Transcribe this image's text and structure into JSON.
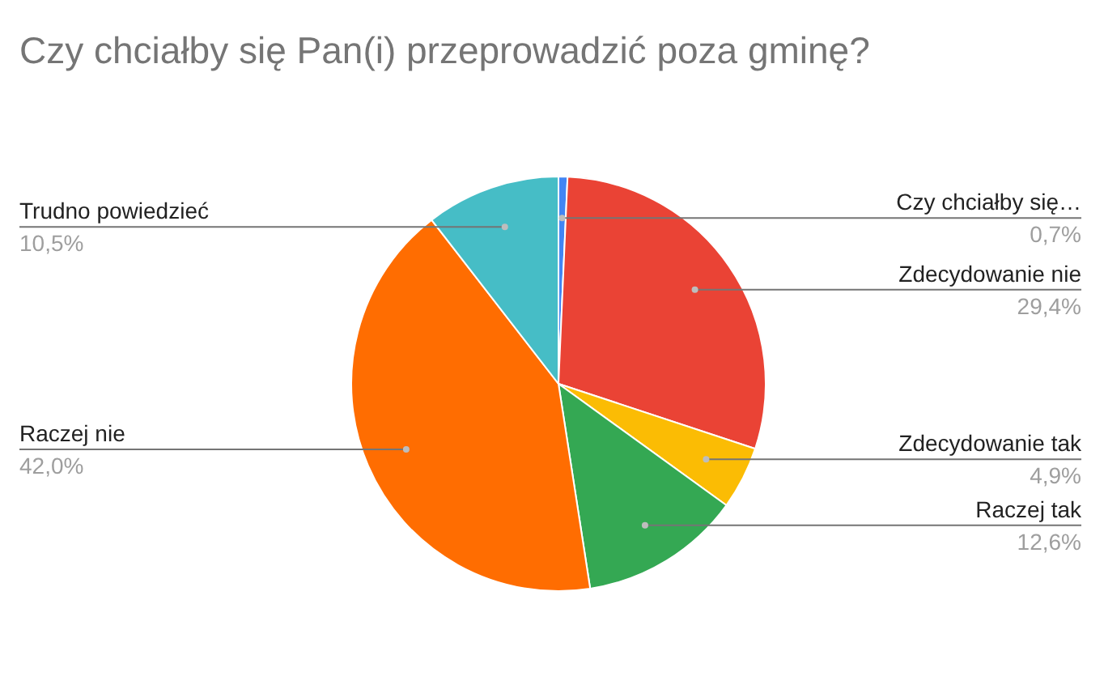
{
  "chart_data": {
    "type": "pie",
    "title": "Czy chciałby się Pan(i) przeprowadzić poza gminę?",
    "categories": [
      "Czy chciałby się…",
      "Zdecydowanie nie",
      "Zdecydowanie tak",
      "Raczej tak",
      "Raczej nie",
      "Trudno powiedzieć"
    ],
    "values": [
      0.7,
      29.4,
      4.9,
      12.6,
      42.0,
      10.5
    ],
    "colors": [
      "#4285f4",
      "#ea4335",
      "#fbbc04",
      "#34a853",
      "#ff6d01",
      "#46bdc6"
    ],
    "value_labels": [
      "0,7%",
      "29,4%",
      "4,9%",
      "12,6%",
      "42,0%",
      "10,5%"
    ]
  }
}
